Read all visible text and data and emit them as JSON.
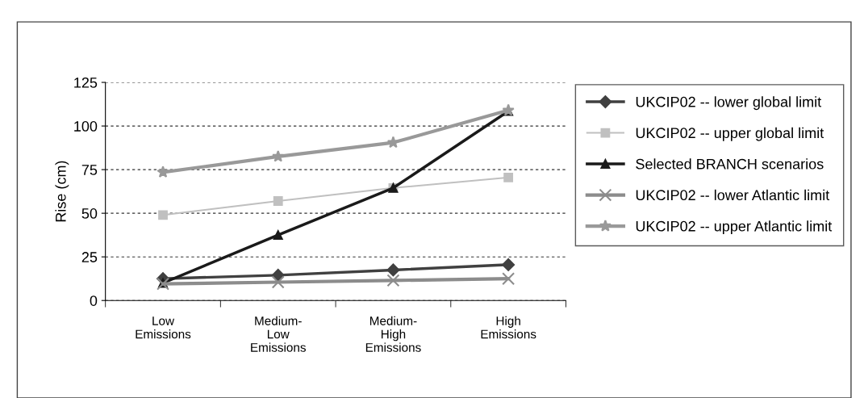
{
  "chart_data": {
    "type": "line",
    "ylabel": "Rise (cm)",
    "categories": [
      "Low Emissions",
      "Medium-Low Emissions",
      "Medium-High Emissions",
      "High Emissions"
    ],
    "series": [
      {
        "name": "UKCIP02 -- lower global limit",
        "color": "#404040",
        "marker": "diamond",
        "values": [
          12.5,
          14.5,
          17.5,
          20.5
        ]
      },
      {
        "name": "UKCIP02 -- upper global limit",
        "color": "#c0c0c0",
        "marker": "square",
        "values": [
          49,
          57,
          64.5,
          70.5
        ]
      },
      {
        "name": "Selected BRANCH scenarios",
        "color": "#1a1a1a",
        "marker": "triangle",
        "values": [
          10,
          37.5,
          64.5,
          108.5
        ]
      },
      {
        "name": "UKCIP02 -- lower Atlantic limit",
        "color": "#8c8c8c",
        "marker": "cross",
        "values": [
          9.5,
          10.5,
          11.5,
          12.5
        ]
      },
      {
        "name": "UKCIP02 -- upper Atlantic limit",
        "color": "#999999",
        "marker": "star",
        "values": [
          73.5,
          82.5,
          90.5,
          109
        ]
      }
    ],
    "ylim": [
      0,
      125
    ],
    "yticks": [
      0,
      25,
      50,
      75,
      100,
      125
    ],
    "grid": "y",
    "legend": "right"
  }
}
